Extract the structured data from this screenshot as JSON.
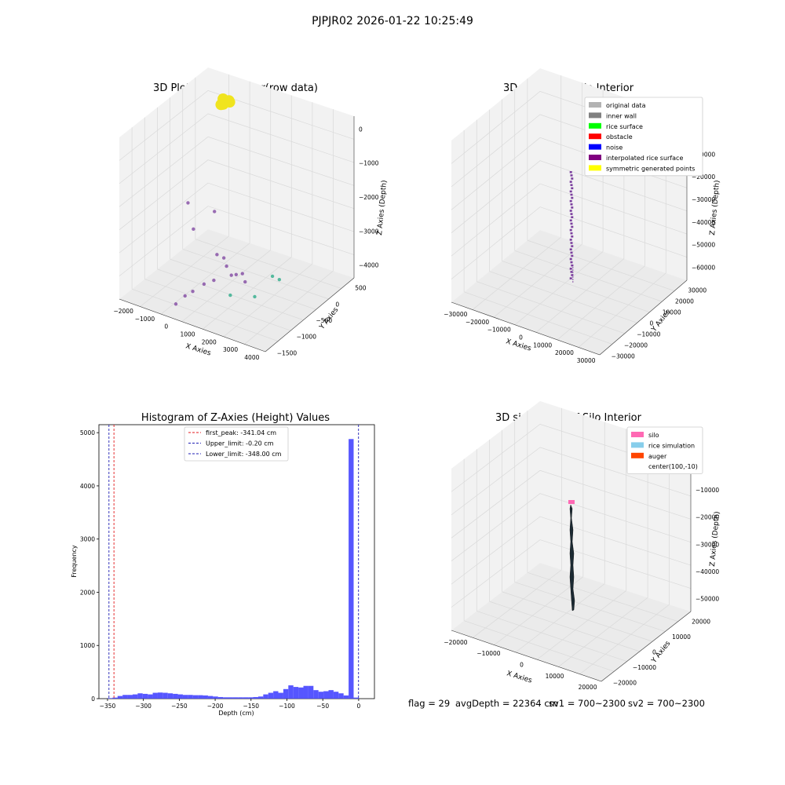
{
  "figure": {
    "suptitle": "PJPJR02 2026-01-22 10:25:49",
    "footer": {
      "flag": "flag = 29",
      "avg_depth": "avgDepth = 22364 cm",
      "sv1": "sv1 = 700~2300",
      "sv2": "sv2 = 700~2300"
    }
  },
  "colors": {
    "pane": "#f2f2f2",
    "grid": "#d9d9d9",
    "raw_yellow": "#f0e41e",
    "purple": "#7b3f9e",
    "teal": "#23a884",
    "hist_bar": "#4d4dff",
    "first_peak_line": "#e31a1c",
    "limit_line": "#1f1fb4",
    "silo_pink": "#ff69b4",
    "rice_sim": "#87ceeb",
    "auger": "#ff4500",
    "dark": "#1b2a33"
  },
  "chart_data": [
    {
      "type": "scatter",
      "title": "3D Plot of Silo Interior(row data)",
      "xlabel": "X Axies",
      "ylabel": "Y Axies",
      "zlabel": "Z Axies (Depth)",
      "x_ticks": [
        "−2000",
        "−1000",
        "0",
        "1000",
        "2000",
        "3000",
        "4000"
      ],
      "y_ticks": [
        "−1500",
        "−1000",
        "−500",
        "0",
        "500"
      ],
      "z_ticks": [
        "−4000",
        "−3000",
        "−2000",
        "−1000",
        "0"
      ],
      "series": [
        {
          "color": "yellow",
          "points": [
            [
              -1100,
              300,
              -100
            ],
            [
              -900,
              350,
              -150
            ],
            [
              -1000,
              250,
              -200
            ],
            [
              -1200,
              300,
              -300
            ],
            [
              -950,
              400,
              -250
            ]
          ]
        },
        {
          "color": "purple",
          "points": [
            [
              -2100,
              -100,
              -3200
            ],
            [
              -1000,
              0,
              -3300
            ],
            [
              -1500,
              -300,
              -3700
            ],
            [
              -200,
              -400,
              -4100
            ],
            [
              300,
              -500,
              -4000
            ],
            [
              600,
              -600,
              -4100
            ],
            [
              1000,
              -700,
              -4200
            ],
            [
              1400,
              -800,
              -4000
            ],
            [
              1700,
              -800,
              -3900
            ],
            [
              2000,
              -900,
              -4000
            ],
            [
              500,
              -900,
              -4300
            ],
            [
              200,
              -1000,
              -4400
            ],
            [
              0,
              -1200,
              -4500
            ],
            [
              -200,
              -1300,
              -4600
            ],
            [
              -300,
              -1500,
              -4700
            ]
          ]
        },
        {
          "color": "teal",
          "points": [
            [
              2800,
              -600,
              -3900
            ],
            [
              3300,
              -700,
              -3800
            ],
            [
              2800,
              -1100,
              -4100
            ],
            [
              1800,
              -1200,
              -4200
            ]
          ]
        }
      ]
    },
    {
      "type": "scatter",
      "title": "3D classify of Silo Interior",
      "xlabel": "X Axies",
      "ylabel": "Y Axies",
      "zlabel": "Z Axies (Depth)",
      "x_ticks": [
        "−30000",
        "−20000",
        "−10000",
        "0",
        "10000",
        "20000",
        "30000"
      ],
      "y_ticks": [
        "−30000",
        "−20000",
        "−10000",
        "0",
        "10000",
        "20000",
        "30000"
      ],
      "z_ticks": [
        "−60000",
        "−50000",
        "−40000",
        "−30000",
        "−20000",
        "−10000",
        "0"
      ],
      "legend": [
        {
          "label": "original data",
          "color": "#b3b3b3"
        },
        {
          "label": "inner wall",
          "color": "#808080"
        },
        {
          "label": "rice surface",
          "color": "#00ff00"
        },
        {
          "label": "obstacle",
          "color": "#ff0000"
        },
        {
          "label": "noise",
          "color": "#0000ff"
        },
        {
          "label": "interpolated rice surface",
          "color": "#800080"
        },
        {
          "label": "symmetric generated points",
          "color": "#ffff00"
        }
      ]
    },
    {
      "type": "bar",
      "title": "Histogram of Z-Axies (Height) Values",
      "xlabel": "Depth (cm)",
      "ylabel": "Frequency",
      "x_ticks": [
        "−350",
        "−300",
        "−250",
        "−200",
        "−150",
        "−100",
        "−50",
        "0"
      ],
      "y_ticks": [
        "0",
        "1000",
        "2000",
        "3000",
        "4000",
        "5000"
      ],
      "xlim": [
        -362,
        22
      ],
      "ylim": [
        0,
        5150
      ],
      "bin_starts": [
        -350,
        -343,
        -336,
        -329,
        -322,
        -315,
        -308,
        -301,
        -294,
        -287,
        -280,
        -273,
        -266,
        -259,
        -252,
        -245,
        -238,
        -231,
        -224,
        -217,
        -210,
        -203,
        -196,
        -189,
        -182,
        -175,
        -168,
        -161,
        -154,
        -147,
        -140,
        -133,
        -126,
        -119,
        -112,
        -105,
        -98,
        -91,
        -84,
        -77,
        -70,
        -63,
        -56,
        -49,
        -42,
        -35,
        -28,
        -21,
        -14,
        -7
      ],
      "values": [
        10,
        20,
        50,
        70,
        70,
        80,
        100,
        90,
        80,
        110,
        115,
        110,
        100,
        90,
        80,
        70,
        70,
        65,
        65,
        60,
        50,
        40,
        30,
        25,
        25,
        25,
        25,
        25,
        25,
        30,
        40,
        80,
        110,
        140,
        110,
        180,
        250,
        220,
        210,
        240,
        240,
        160,
        130,
        140,
        160,
        130,
        100,
        60,
        4880,
        20
      ],
      "lines": [
        {
          "label": "first_peak: -341.04 cm",
          "x": -341.04,
          "kind": "first_peak"
        },
        {
          "label": "Upper_limit: -0.20 cm",
          "x": -0.2,
          "kind": "limit"
        },
        {
          "label": "Lower_limit: -348.00 cm",
          "x": -348.0,
          "kind": "limit"
        }
      ]
    },
    {
      "type": "scatter",
      "title": "3D simulation of Silo Interior",
      "xlabel": "X Axies",
      "ylabel": "Y Axies",
      "zlabel": "Z Axies (Depth)",
      "x_ticks": [
        "−20000",
        "−10000",
        "0",
        "10000",
        "20000"
      ],
      "y_ticks": [
        "−20000",
        "−10000",
        "0",
        "10000",
        "20000"
      ],
      "z_ticks": [
        "−50000",
        "−40000",
        "−30000",
        "−20000",
        "−10000",
        "0"
      ],
      "legend": [
        {
          "label": "silo",
          "color": "#ff69b4"
        },
        {
          "label": "rice simulation",
          "color": "#87ceeb"
        },
        {
          "label": "auger",
          "color": "#ff4500"
        },
        {
          "label": "center(100,-10)",
          "color": "none"
        }
      ]
    }
  ]
}
